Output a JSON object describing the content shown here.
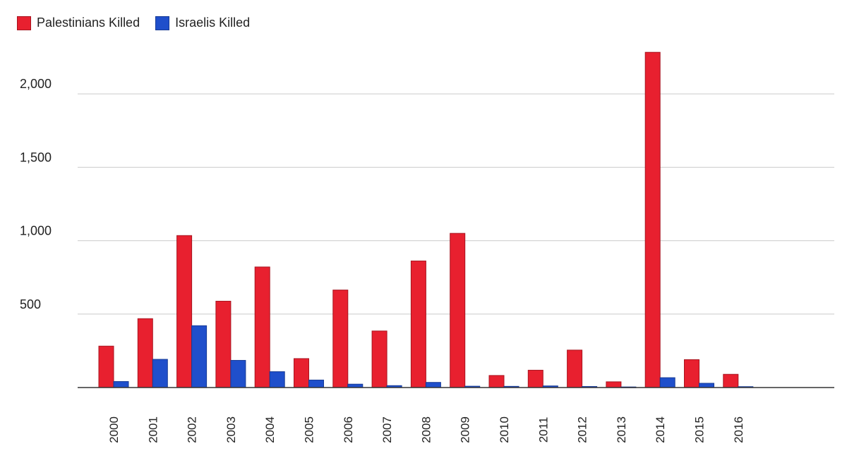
{
  "chart_data": {
    "type": "bar",
    "title": "",
    "xlabel": "",
    "ylabel": "",
    "ylim": [
      0,
      2300
    ],
    "yticks": [
      500,
      1000,
      1500,
      2000
    ],
    "ytick_labels": [
      "500",
      "1,000",
      "1,500",
      "2,000"
    ],
    "grid": true,
    "legend_position": "top-left",
    "categories": [
      "2000",
      "2001",
      "2002",
      "2003",
      "2004",
      "2005",
      "2006",
      "2007",
      "2008",
      "2009",
      "2010",
      "2011",
      "2012",
      "2013",
      "2014",
      "2015",
      "2016"
    ],
    "series": [
      {
        "name": "Palestinians Killed",
        "color": "#e8202f",
        "values": [
          282,
          469,
          1035,
          588,
          821,
          197,
          664,
          385,
          862,
          1050,
          82,
          118,
          255,
          39,
          2283,
          190,
          90
        ]
      },
      {
        "name": "Israelis Killed",
        "color": "#1f4fcb",
        "values": [
          41,
          192,
          421,
          185,
          108,
          51,
          23,
          13,
          35,
          9,
          8,
          11,
          7,
          4,
          67,
          29,
          6
        ]
      }
    ]
  }
}
